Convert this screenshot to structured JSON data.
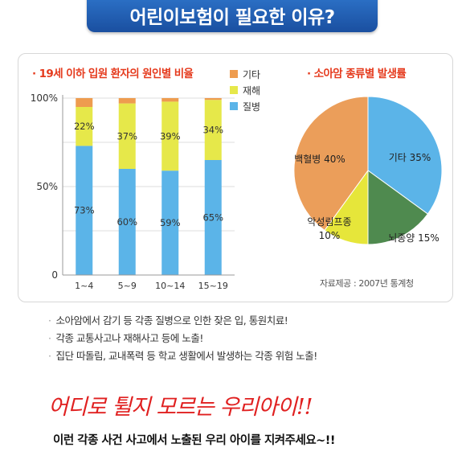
{
  "banner": {
    "title": "어린이보험이 필요한 이유?"
  },
  "chart_data": [
    {
      "type": "bar",
      "stacked": true,
      "title": "· 19세 이하 입원 환자의 원인별 비율",
      "categories": [
        "1~4",
        "5~9",
        "10~14",
        "15~19"
      ],
      "series": [
        {
          "name": "질병",
          "color": "#5bb4e8",
          "values": [
            73,
            60,
            59,
            65
          ],
          "labels": [
            "73%",
            "60%",
            "59%",
            "65%"
          ]
        },
        {
          "name": "재해",
          "color": "#e6e84a",
          "values": [
            22,
            37,
            39,
            34
          ],
          "labels": [
            "22%",
            "37%",
            "39%",
            "34%"
          ]
        },
        {
          "name": "기타",
          "color": "#ee9c4f",
          "values": [
            5,
            3,
            2,
            1
          ]
        }
      ],
      "yticks": [
        "100%",
        "50%",
        "0"
      ],
      "ylim": [
        0,
        100
      ],
      "legend": "top-right"
    },
    {
      "type": "pie",
      "title": "· 소아암 종류별 발생률",
      "slices": [
        {
          "label": "기타 35%",
          "value": 35,
          "color": "#5bb4e8"
        },
        {
          "label": "뇌종양 15%",
          "value": 15,
          "color": "#4f8a4f"
        },
        {
          "label_line1": "악성림프종",
          "label_line2": "10%",
          "value": 10,
          "color": "#e6e63a"
        },
        {
          "label": "백혈병 40%",
          "value": 40,
          "color": "#eb9e5a"
        }
      ]
    }
  ],
  "source": "자료제공 : 2007년 통계청",
  "bullets": [
    "소아암에서 감기 등 각종 질병으로 인한 잦은 입, 통원치료!",
    "각종 교통사고나 재해사고 등에 노출!",
    "집단 따돌림, 교내폭력 등 학교 생활에서 발생하는 각종 위험 노출!"
  ],
  "slogan": "어디로 튈지 모르는 우리아이!!",
  "footer": "이런 각종 사건 사고에서 노출된 우리 아이를 지켜주세요~!!"
}
